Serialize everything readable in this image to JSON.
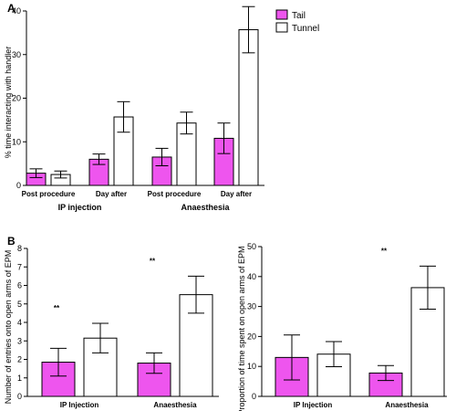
{
  "panels": {
    "a": "A",
    "b": "B"
  },
  "legend": {
    "tail": "Tail",
    "tunnel": "Tunnel"
  },
  "colors": {
    "tail": "#ee55ee",
    "tunnel": "#ffffff",
    "stroke": "#000000"
  },
  "chart_data": [
    {
      "type": "bar",
      "panel": "A",
      "ylabel": "% time interacting with handler",
      "ylim": [
        0,
        40
      ],
      "yticks": [
        0,
        10,
        20,
        30,
        40
      ],
      "categories": [
        "Post procedure",
        "Day after",
        "Post procedure",
        "Day after"
      ],
      "groups": [
        {
          "label": "IP injection",
          "span": [
            0,
            1
          ]
        },
        {
          "label": "Anaesthesia",
          "span": [
            2,
            3
          ]
        }
      ],
      "series": [
        {
          "name": "Tail",
          "values": [
            2.8,
            6.0,
            6.5,
            10.8
          ],
          "errors": [
            1.0,
            1.2,
            2.0,
            3.5
          ]
        },
        {
          "name": "Tunnel",
          "values": [
            2.5,
            15.7,
            14.3,
            35.7
          ],
          "errors": [
            0.8,
            3.5,
            2.5,
            5.3
          ]
        }
      ],
      "significance": []
    },
    {
      "type": "bar",
      "panel": "B-left",
      "ylabel": "Number of entries onto open arms of EPM",
      "ylim": [
        0,
        8
      ],
      "yticks": [
        0,
        1,
        2,
        3,
        4,
        5,
        6,
        7,
        8
      ],
      "categories": [
        "IP Injection",
        "Anaesthesia"
      ],
      "series": [
        {
          "name": "Tail",
          "values": [
            1.85,
            1.8
          ],
          "errors": [
            0.75,
            0.55
          ]
        },
        {
          "name": "Tunnel",
          "values": [
            3.15,
            5.5
          ],
          "errors": [
            0.8,
            1.0
          ]
        }
      ],
      "significance": [
        {
          "category": 0,
          "label": "**"
        },
        {
          "category": 1,
          "label": "**"
        }
      ]
    },
    {
      "type": "bar",
      "panel": "B-right",
      "ylabel": "Proportion of time spent on open arms of EPM",
      "ylim": [
        0,
        50
      ],
      "yticks": [
        0,
        10,
        20,
        30,
        40,
        50
      ],
      "categories": [
        "IP Injection",
        "Anaesthesia"
      ],
      "series": [
        {
          "name": "Tail",
          "values": [
            13.0,
            7.8
          ],
          "errors": [
            7.5,
            2.5
          ]
        },
        {
          "name": "Tunnel",
          "values": [
            14.1,
            36.3
          ],
          "errors": [
            4.2,
            7.2
          ]
        }
      ],
      "significance": [
        {
          "category": 1,
          "label": "**"
        }
      ]
    }
  ]
}
